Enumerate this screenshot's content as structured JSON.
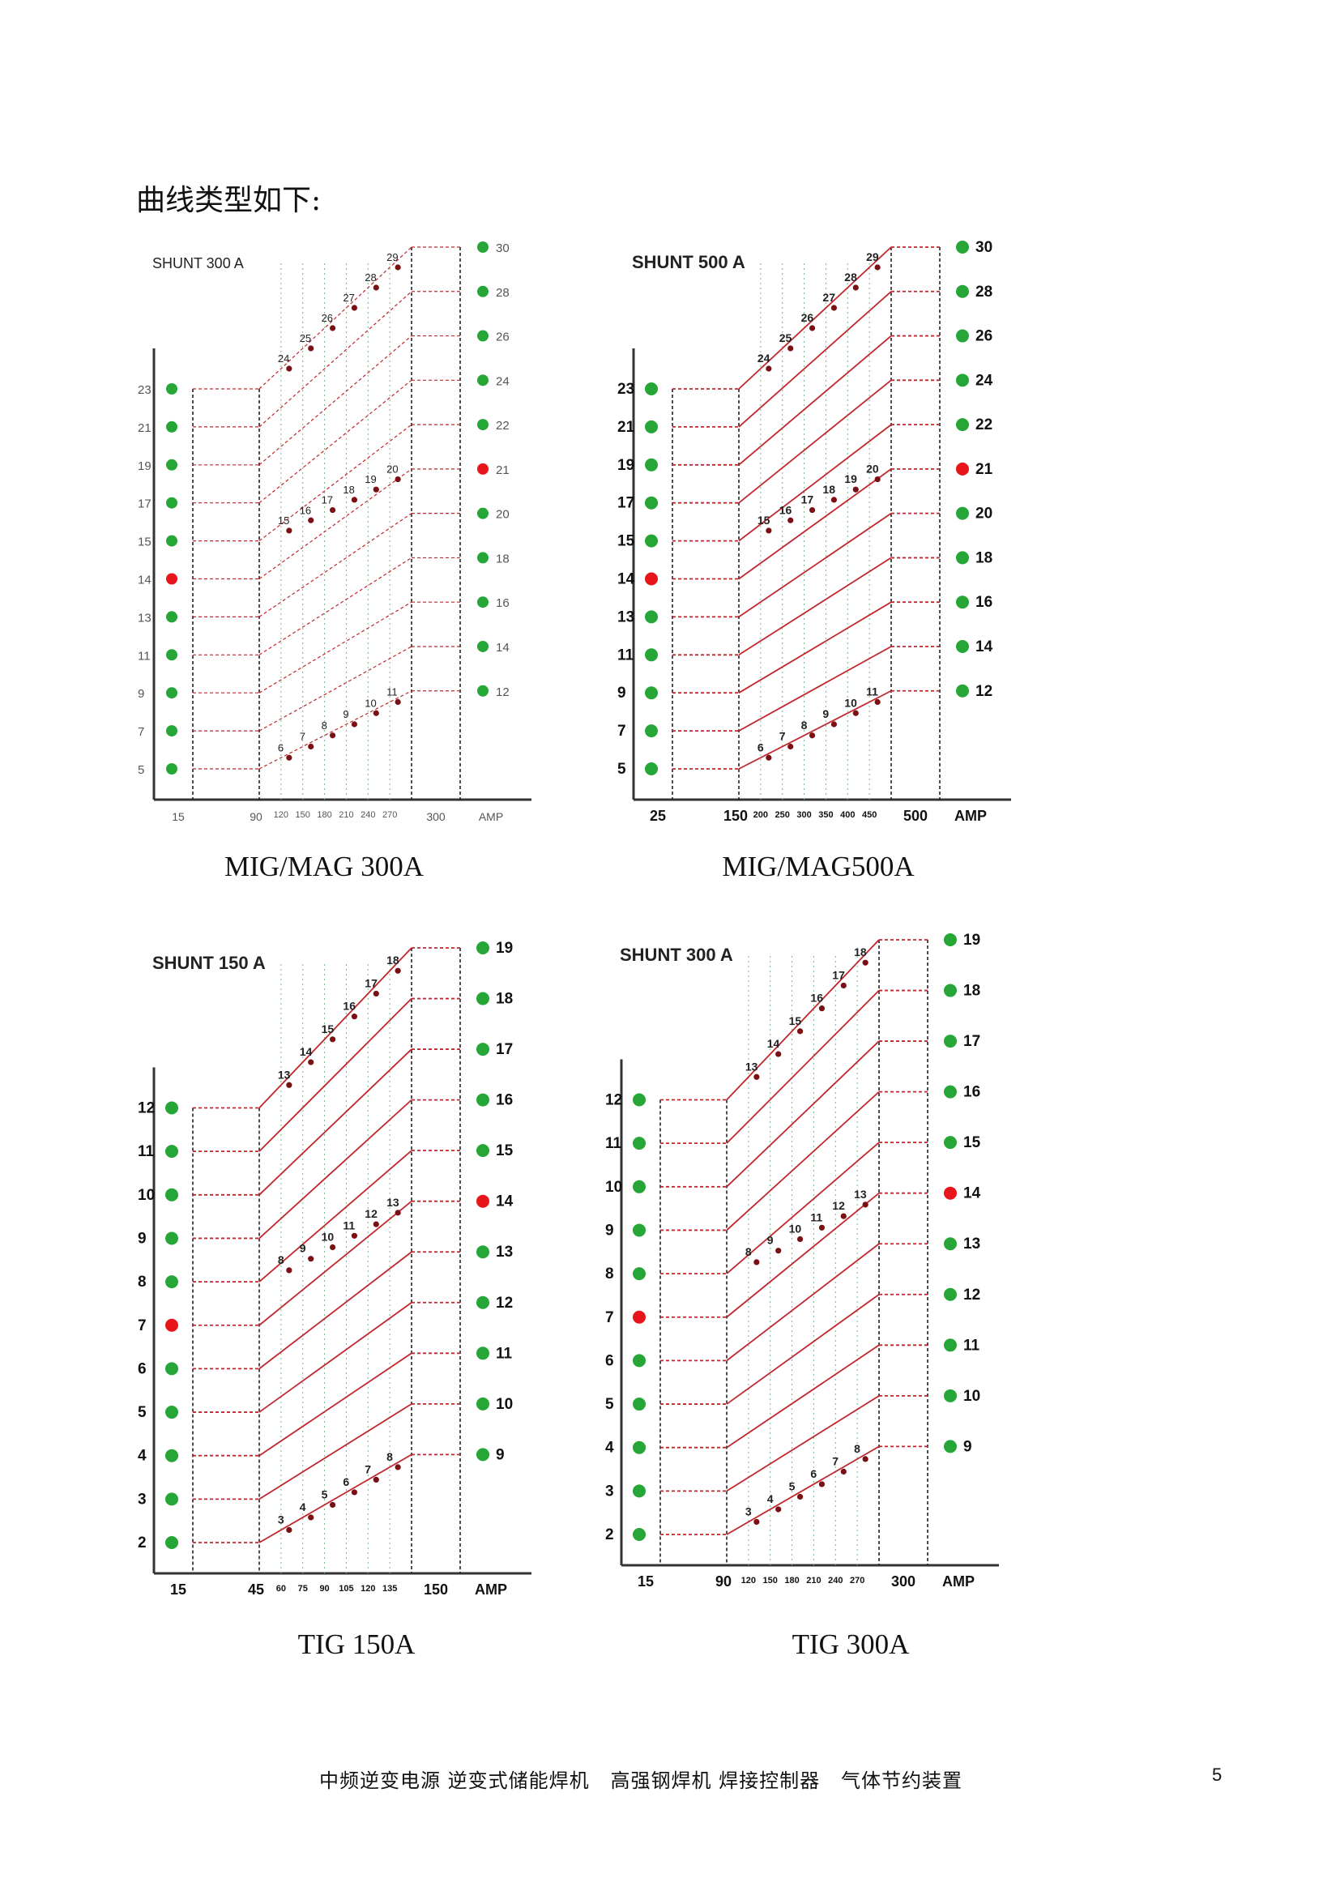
{
  "heading": "曲线类型如下:",
  "footer": "中频逆变电源 逆变式储能焊机   高强钢焊机 焊接控制器   气体节约装置",
  "page_number": "5",
  "colors": {
    "selected": "#e8161b",
    "dot": "#25a637",
    "line": "#c1272d",
    "grid_dot": "#7bb58a"
  },
  "chart_data": [
    {
      "type": "diagram",
      "caption": "MIG/MAG 300A",
      "title": "SHUNT 300 A",
      "left_labels": [
        "23",
        "21",
        "19",
        "17",
        "15",
        "14",
        "13",
        "11",
        "9",
        "7",
        "5"
      ],
      "left_selected": "14",
      "right_labels": [
        "30",
        "28",
        "26",
        "24",
        "22",
        "21",
        "20",
        "18",
        "16",
        "14",
        "12"
      ],
      "right_selected": "21",
      "diagonal_upper": [
        "24",
        "25",
        "26",
        "27",
        "28",
        "29"
      ],
      "diagonal_middle": [
        "15",
        "16",
        "17",
        "18",
        "19",
        "20"
      ],
      "diagonal_lower": [
        "6",
        "7",
        "8",
        "9",
        "10",
        "11"
      ],
      "x_ticks_big": [
        "15",
        "90"
      ],
      "x_ticks_small": [
        "120",
        "150",
        "180",
        "210",
        "240",
        "270"
      ],
      "x_ticks_end": [
        "300",
        "AMP"
      ]
    },
    {
      "type": "diagram",
      "caption": "MIG/MAG500A",
      "title": "SHUNT 500 A",
      "left_labels": [
        "23",
        "21",
        "19",
        "17",
        "15",
        "14",
        "13",
        "11",
        "9",
        "7",
        "5"
      ],
      "left_selected": "14",
      "right_labels": [
        "30",
        "28",
        "26",
        "24",
        "22",
        "21",
        "20",
        "18",
        "16",
        "14",
        "12"
      ],
      "right_selected": "21",
      "diagonal_upper": [
        "24",
        "25",
        "26",
        "27",
        "28",
        "29"
      ],
      "diagonal_middle": [
        "15",
        "16",
        "17",
        "18",
        "19",
        "20"
      ],
      "diagonal_lower": [
        "6",
        "7",
        "8",
        "9",
        "10",
        "11"
      ],
      "x_ticks_big": [
        "25",
        "150"
      ],
      "x_ticks_small": [
        "200",
        "250",
        "300",
        "350",
        "400",
        "450"
      ],
      "x_ticks_end": [
        "500",
        "AMP"
      ]
    },
    {
      "type": "diagram",
      "caption": "TIG 150A",
      "title": "SHUNT 150 A",
      "left_labels": [
        "12",
        "11",
        "10",
        "9",
        "8",
        "7",
        "6",
        "5",
        "4",
        "3",
        "2"
      ],
      "left_selected": "7",
      "right_labels": [
        "19",
        "18",
        "17",
        "16",
        "15",
        "14",
        "13",
        "12",
        "11",
        "10",
        "9"
      ],
      "right_selected": "14",
      "diagonal_upper": [
        "13",
        "14",
        "15",
        "16",
        "17",
        "18"
      ],
      "diagonal_middle": [
        "8",
        "9",
        "10",
        "11",
        "12",
        "13"
      ],
      "diagonal_lower": [
        "3",
        "4",
        "5",
        "6",
        "7",
        "8"
      ],
      "x_ticks_big": [
        "15",
        "45"
      ],
      "x_ticks_small": [
        "60",
        "75",
        "90",
        "105",
        "120",
        "135"
      ],
      "x_ticks_end": [
        "150",
        "AMP"
      ]
    },
    {
      "type": "diagram",
      "caption": "TIG 300A",
      "title": "SHUNT 300 A",
      "left_labels": [
        "12",
        "11",
        "10",
        "9",
        "8",
        "7",
        "6",
        "5",
        "4",
        "3",
        "2"
      ],
      "left_selected": "7",
      "right_labels": [
        "19",
        "18",
        "17",
        "16",
        "15",
        "14",
        "13",
        "12",
        "11",
        "10",
        "9"
      ],
      "right_selected": "14",
      "diagonal_upper": [
        "13",
        "14",
        "15",
        "16",
        "17",
        "18"
      ],
      "diagonal_middle": [
        "8",
        "9",
        "10",
        "11",
        "12",
        "13"
      ],
      "diagonal_lower": [
        "3",
        "4",
        "5",
        "6",
        "7",
        "8"
      ],
      "x_ticks_big": [
        "15",
        "90"
      ],
      "x_ticks_small": [
        "120",
        "150",
        "180",
        "210",
        "240",
        "270"
      ],
      "x_ticks_end": [
        "300",
        "AMP"
      ]
    }
  ]
}
